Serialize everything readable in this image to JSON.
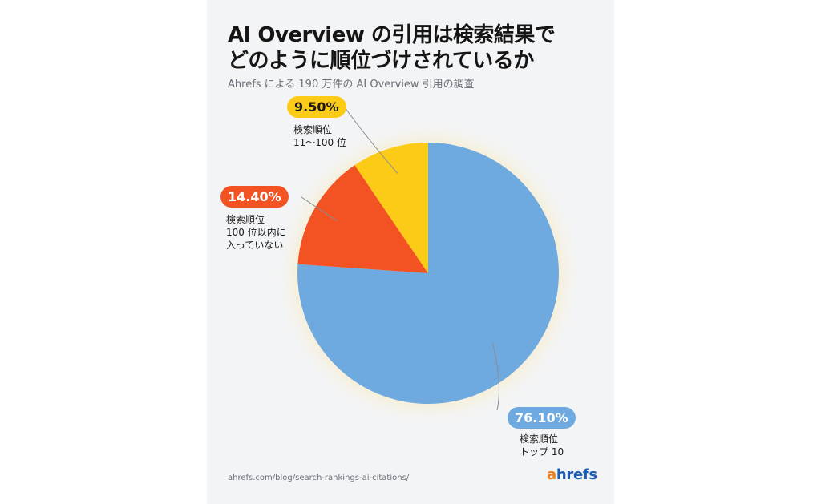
{
  "header": {
    "title_line1": "AI Overview の引用は検索結果で",
    "title_line2": "どのように順位づけされているか",
    "subtitle": "Ahrefs による 190 万件の AI Overview 引用の調査"
  },
  "footer": {
    "source_url": "ahrefs.com/blog/search-rankings-ai-citations/",
    "logo_first": "a",
    "logo_rest": "hrefs"
  },
  "colors": {
    "top10": "#6eaae0",
    "not_in_100": "#f35222",
    "rank_11_100": "#fccb17"
  },
  "chart_data": {
    "type": "pie",
    "title": "AI Overview の引用は検索結果でどのように順位づけされているか",
    "subtitle": "Ahrefs による 190 万件の AI Overview 引用の調査",
    "slices": [
      {
        "label_line1": "検索順位",
        "label_line2": "トップ 10",
        "label_line3": "",
        "value": 76.1,
        "display": "76.10%",
        "color": "#6eaae0"
      },
      {
        "label_line1": "検索順位",
        "label_line2": "100 位以内に",
        "label_line3": "入っていない",
        "value": 14.4,
        "display": "14.40%",
        "color": "#f35222"
      },
      {
        "label_line1": "検索順位",
        "label_line2": "11〜100 位",
        "label_line3": "",
        "value": 9.5,
        "display": "9.50%",
        "color": "#fccb17"
      }
    ]
  }
}
